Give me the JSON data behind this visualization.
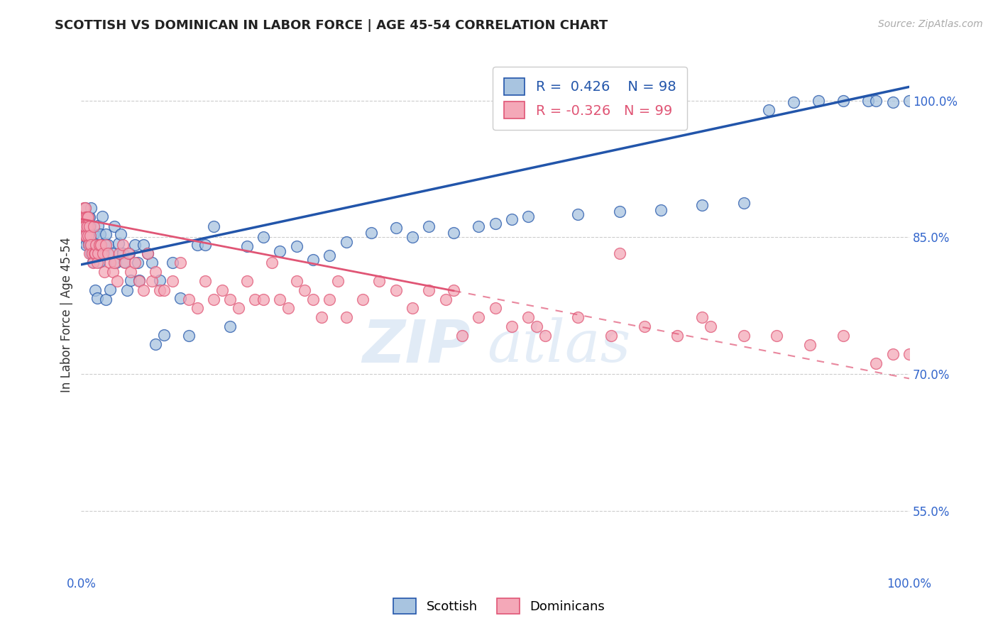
{
  "title": "SCOTTISH VS DOMINICAN IN LABOR FORCE | AGE 45-54 CORRELATION CHART",
  "source": "Source: ZipAtlas.com",
  "ylabel": "In Labor Force | Age 45-54",
  "ytick_labels": [
    "55.0%",
    "70.0%",
    "85.0%",
    "100.0%"
  ],
  "ytick_values": [
    0.55,
    0.7,
    0.85,
    1.0
  ],
  "legend_blue_label": "Scottish",
  "legend_pink_label": "Dominicans",
  "R_blue": 0.426,
  "N_blue": 98,
  "R_pink": -0.326,
  "N_pink": 99,
  "blue_color": "#a8c4e0",
  "pink_color": "#f4a8b8",
  "trendline_blue": "#2255aa",
  "trendline_pink": "#e05575",
  "watermark_zip": "ZIP",
  "watermark_atlas": "atlas",
  "blue_intercept": 0.82,
  "blue_slope": 0.195,
  "pink_intercept": 0.87,
  "pink_slope": -0.175,
  "blue_x": [
    0.002,
    0.003,
    0.003,
    0.004,
    0.004,
    0.004,
    0.005,
    0.005,
    0.005,
    0.006,
    0.006,
    0.006,
    0.006,
    0.007,
    0.007,
    0.007,
    0.008,
    0.008,
    0.009,
    0.009,
    0.01,
    0.01,
    0.011,
    0.011,
    0.012,
    0.012,
    0.013,
    0.014,
    0.015,
    0.016,
    0.017,
    0.018,
    0.019,
    0.02,
    0.022,
    0.023,
    0.025,
    0.027,
    0.028,
    0.03,
    0.03,
    0.032,
    0.035,
    0.037,
    0.04,
    0.042,
    0.045,
    0.048,
    0.05,
    0.052,
    0.055,
    0.058,
    0.06,
    0.065,
    0.068,
    0.07,
    0.075,
    0.08,
    0.085,
    0.09,
    0.095,
    0.1,
    0.11,
    0.12,
    0.13,
    0.14,
    0.15,
    0.16,
    0.18,
    0.2,
    0.22,
    0.24,
    0.26,
    0.28,
    0.3,
    0.32,
    0.35,
    0.38,
    0.4,
    0.42,
    0.45,
    0.48,
    0.5,
    0.52,
    0.54,
    0.6,
    0.65,
    0.7,
    0.75,
    0.8,
    0.83,
    0.86,
    0.89,
    0.92,
    0.95,
    0.96,
    0.98,
    1.0
  ],
  "blue_y": [
    0.858,
    0.87,
    0.86,
    0.858,
    0.845,
    0.862,
    0.882,
    0.865,
    0.872,
    0.853,
    0.842,
    0.865,
    0.851,
    0.872,
    0.863,
    0.853,
    0.863,
    0.852,
    0.872,
    0.843,
    0.862,
    0.872,
    0.863,
    0.842,
    0.882,
    0.832,
    0.852,
    0.823,
    0.853,
    0.832,
    0.792,
    0.842,
    0.783,
    0.863,
    0.823,
    0.853,
    0.873,
    0.833,
    0.843,
    0.853,
    0.782,
    0.842,
    0.793,
    0.832,
    0.862,
    0.822,
    0.843,
    0.853,
    0.832,
    0.823,
    0.792,
    0.832,
    0.803,
    0.842,
    0.822,
    0.803,
    0.842,
    0.832,
    0.822,
    0.733,
    0.803,
    0.743,
    0.822,
    0.783,
    0.742,
    0.842,
    0.842,
    0.862,
    0.752,
    0.84,
    0.85,
    0.835,
    0.84,
    0.825,
    0.83,
    0.845,
    0.855,
    0.86,
    0.85,
    0.862,
    0.855,
    0.862,
    0.865,
    0.87,
    0.873,
    0.875,
    0.878,
    0.88,
    0.885,
    0.888,
    0.99,
    0.998,
    1.0,
    1.0,
    1.0,
    1.0,
    0.998,
    1.0
  ],
  "pink_x": [
    0.002,
    0.003,
    0.003,
    0.004,
    0.004,
    0.005,
    0.005,
    0.006,
    0.006,
    0.007,
    0.007,
    0.008,
    0.008,
    0.009,
    0.01,
    0.01,
    0.011,
    0.012,
    0.013,
    0.014,
    0.015,
    0.016,
    0.017,
    0.018,
    0.019,
    0.02,
    0.022,
    0.024,
    0.026,
    0.028,
    0.03,
    0.032,
    0.035,
    0.038,
    0.04,
    0.043,
    0.046,
    0.05,
    0.053,
    0.057,
    0.06,
    0.065,
    0.07,
    0.075,
    0.08,
    0.085,
    0.09,
    0.095,
    0.1,
    0.11,
    0.12,
    0.13,
    0.14,
    0.15,
    0.16,
    0.17,
    0.18,
    0.19,
    0.2,
    0.21,
    0.22,
    0.23,
    0.24,
    0.25,
    0.26,
    0.27,
    0.28,
    0.29,
    0.3,
    0.31,
    0.32,
    0.34,
    0.36,
    0.38,
    0.4,
    0.42,
    0.44,
    0.46,
    0.48,
    0.5,
    0.52,
    0.54,
    0.56,
    0.6,
    0.64,
    0.68,
    0.72,
    0.76,
    0.8,
    0.84,
    0.88,
    0.92,
    0.96,
    0.98,
    1.0,
    0.45,
    0.55,
    0.65,
    0.75
  ],
  "pink_y": [
    0.872,
    0.862,
    0.882,
    0.872,
    0.852,
    0.862,
    0.882,
    0.872,
    0.852,
    0.872,
    0.862,
    0.872,
    0.852,
    0.842,
    0.832,
    0.862,
    0.852,
    0.842,
    0.832,
    0.822,
    0.862,
    0.832,
    0.832,
    0.842,
    0.822,
    0.832,
    0.842,
    0.842,
    0.832,
    0.812,
    0.842,
    0.832,
    0.822,
    0.812,
    0.822,
    0.802,
    0.832,
    0.842,
    0.822,
    0.832,
    0.812,
    0.822,
    0.802,
    0.792,
    0.832,
    0.802,
    0.812,
    0.792,
    0.792,
    0.802,
    0.822,
    0.782,
    0.772,
    0.802,
    0.782,
    0.792,
    0.782,
    0.772,
    0.802,
    0.782,
    0.782,
    0.822,
    0.782,
    0.772,
    0.802,
    0.792,
    0.782,
    0.762,
    0.782,
    0.802,
    0.762,
    0.782,
    0.802,
    0.792,
    0.772,
    0.792,
    0.782,
    0.742,
    0.762,
    0.772,
    0.752,
    0.762,
    0.742,
    0.762,
    0.742,
    0.752,
    0.742,
    0.752,
    0.742,
    0.742,
    0.732,
    0.742,
    0.712,
    0.722,
    0.722,
    0.792,
    0.752,
    0.832,
    0.762
  ]
}
